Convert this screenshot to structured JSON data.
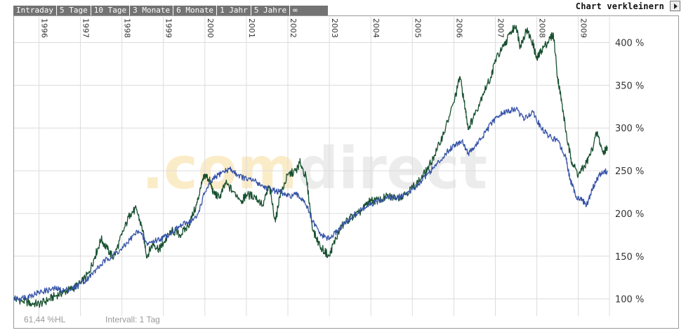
{
  "tabs": [
    "Intraday",
    "5 Tage",
    "10 Tage",
    "3 Monate",
    "6 Monate",
    "1 Jahr",
    "5 Jahre",
    "∞"
  ],
  "shrink_label": "Chart verkleinern",
  "watermark": ".comdirect",
  "footer": {
    "hl": "61,44 %HL",
    "interval": "Intervall: 1 Tag"
  },
  "colors": {
    "green": "#17502f",
    "blue": "#3653a8",
    "grid": "#dcdcdc",
    "tab_bg": "#737373"
  },
  "chart_data": {
    "type": "line",
    "x_ticks": [
      "1996",
      "1997",
      "1998",
      "1999",
      "2000",
      "2001",
      "2002",
      "2003",
      "2004",
      "2005",
      "2006",
      "2007",
      "2008",
      "2009"
    ],
    "y_ticks": [
      "100 %",
      "150 %",
      "200 %",
      "250 %",
      "300 %",
      "350 %",
      "400 %"
    ],
    "ylim": [
      80,
      430
    ],
    "xlim": [
      1995.4,
      2009.75
    ],
    "legend": "none",
    "grid": true,
    "series": [
      {
        "color": "#17502f",
        "x": [
          1995.4,
          1995.6,
          1995.8,
          1996.0,
          1996.2,
          1996.4,
          1996.6,
          1996.8,
          1997.0,
          1997.2,
          1997.35,
          1997.5,
          1997.65,
          1997.8,
          1998.0,
          1998.2,
          1998.35,
          1998.5,
          1998.6,
          1998.75,
          1998.9,
          1999.0,
          1999.2,
          1999.4,
          1999.6,
          1999.8,
          1999.9,
          2000.0,
          2000.1,
          2000.2,
          2000.35,
          2000.5,
          2000.7,
          2000.9,
          2001.0,
          2001.2,
          2001.4,
          2001.55,
          2001.7,
          2001.8,
          2002.0,
          2002.2,
          2002.3,
          2002.45,
          2002.6,
          2002.8,
          2003.0,
          2003.1,
          2003.3,
          2003.5,
          2003.7,
          2003.9,
          2004.0,
          2004.2,
          2004.4,
          2004.6,
          2004.8,
          2005.0,
          2005.2,
          2005.4,
          2005.6,
          2005.8,
          2006.0,
          2006.15,
          2006.25,
          2006.35,
          2006.5,
          2006.7,
          2006.9,
          2007.0,
          2007.2,
          2007.35,
          2007.5,
          2007.6,
          2007.75,
          2007.9,
          2008.0,
          2008.1,
          2008.25,
          2008.4,
          2008.5,
          2008.6,
          2008.75,
          2008.85,
          2009.0,
          2009.15,
          2009.3,
          2009.45,
          2009.6,
          2009.7
        ],
        "values": [
          100,
          98,
          95,
          94,
          98,
          104,
          108,
          112,
          118,
          130,
          150,
          170,
          158,
          148,
          175,
          200,
          205,
          180,
          150,
          165,
          158,
          165,
          180,
          175,
          185,
          210,
          230,
          245,
          240,
          225,
          218,
          235,
          225,
          215,
          222,
          220,
          210,
          232,
          190,
          220,
          245,
          250,
          260,
          240,
          180,
          160,
          150,
          165,
          185,
          195,
          200,
          210,
          215,
          215,
          220,
          218,
          222,
          230,
          240,
          255,
          275,
          300,
          330,
          360,
          330,
          300,
          315,
          340,
          360,
          380,
          395,
          410,
          420,
          395,
          415,
          400,
          380,
          390,
          400,
          410,
          360,
          330,
          280,
          260,
          245,
          255,
          270,
          295,
          270,
          278
        ]
      },
      {
        "color": "#3653a8",
        "x": [
          1995.4,
          1995.6,
          1995.8,
          1996.0,
          1996.2,
          1996.4,
          1996.6,
          1996.8,
          1997.0,
          1997.2,
          1997.4,
          1997.6,
          1997.8,
          1998.0,
          1998.2,
          1998.4,
          1998.6,
          1998.8,
          1999.0,
          1999.2,
          1999.4,
          1999.6,
          1999.8,
          2000.0,
          2000.2,
          2000.4,
          2000.6,
          2000.8,
          2001.0,
          2001.2,
          2001.4,
          2001.6,
          2001.8,
          2002.0,
          2002.2,
          2002.4,
          2002.6,
          2002.8,
          2003.0,
          2003.2,
          2003.4,
          2003.6,
          2003.8,
          2004.0,
          2004.2,
          2004.4,
          2004.6,
          2004.8,
          2005.0,
          2005.2,
          2005.4,
          2005.6,
          2005.8,
          2006.0,
          2006.2,
          2006.35,
          2006.5,
          2006.7,
          2006.9,
          2007.1,
          2007.3,
          2007.5,
          2007.7,
          2007.9,
          2008.1,
          2008.3,
          2008.5,
          2008.7,
          2008.8,
          2008.95,
          2009.1,
          2009.2,
          2009.35,
          2009.5,
          2009.7
        ],
        "values": [
          100,
          102,
          104,
          108,
          110,
          112,
          110,
          112,
          118,
          125,
          135,
          145,
          152,
          158,
          170,
          180,
          165,
          168,
          172,
          178,
          185,
          190,
          195,
          225,
          240,
          248,
          252,
          245,
          240,
          238,
          232,
          228,
          225,
          220,
          222,
          215,
          190,
          175,
          170,
          180,
          190,
          198,
          205,
          210,
          215,
          220,
          218,
          222,
          228,
          238,
          248,
          258,
          270,
          280,
          285,
          270,
          278,
          290,
          305,
          315,
          320,
          322,
          310,
          320,
          300,
          290,
          285,
          265,
          240,
          220,
          215,
          210,
          230,
          245,
          250
        ]
      }
    ]
  }
}
